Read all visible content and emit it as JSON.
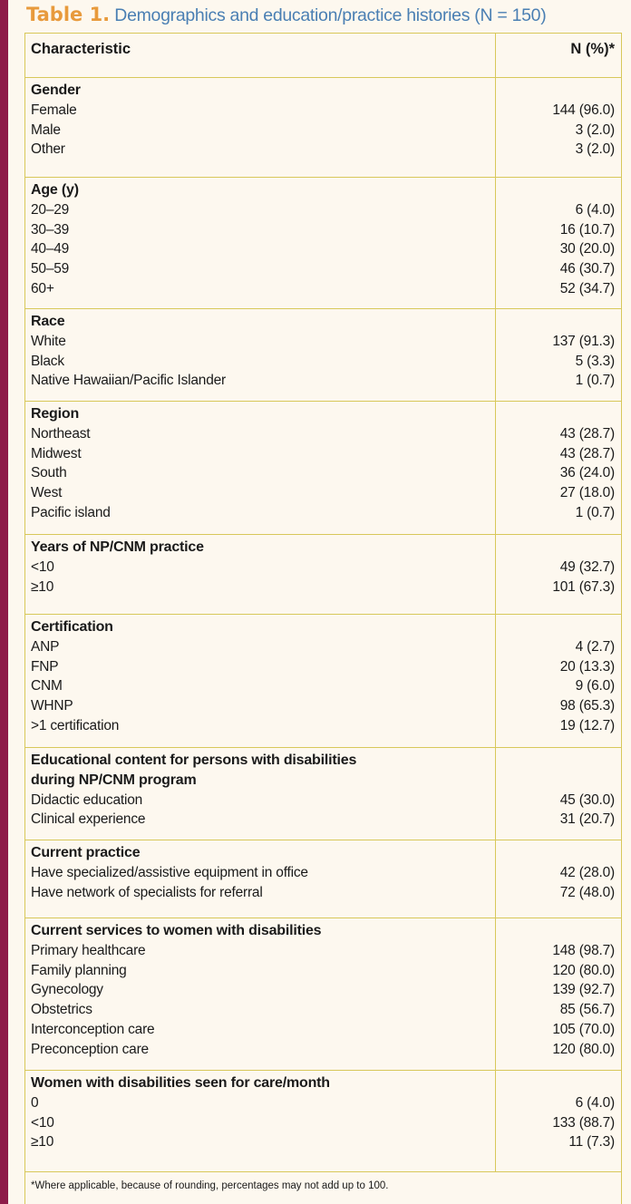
{
  "caption": {
    "label": "Table 1.",
    "text": " Demographics and education/practice histories (N = 150)"
  },
  "header": {
    "characteristic": "Characteristic",
    "value": "N (%)*"
  },
  "sections": [
    {
      "title_lines": [
        "Gender"
      ],
      "rows": [
        {
          "label": "Female",
          "value": "144 (96.0)"
        },
        {
          "label": "Male",
          "value": "3 (2.0)"
        },
        {
          "label": "Other",
          "value": "3 (2.0)"
        }
      ]
    },
    {
      "title_lines": [
        "Age (y)"
      ],
      "rows": [
        {
          "label": "20–29",
          "value": "6 (4.0)"
        },
        {
          "label": "30–39",
          "value": "16 (10.7)"
        },
        {
          "label": "40–49",
          "value": "30 (20.0)"
        },
        {
          "label": "50–59",
          "value": "46 (30.7)"
        },
        {
          "label": "60+",
          "value": "52 (34.7)"
        }
      ]
    },
    {
      "title_lines": [
        "Race"
      ],
      "rows": [
        {
          "label": "White",
          "value": "137 (91.3)"
        },
        {
          "label": "Black",
          "value": "5 (3.3)"
        },
        {
          "label": "Native Hawaiian/Pacific Islander",
          "value": "1 (0.7)"
        }
      ]
    },
    {
      "title_lines": [
        "Region"
      ],
      "rows": [
        {
          "label": "Northeast",
          "value": "43 (28.7)"
        },
        {
          "label": "Midwest",
          "value": "43 (28.7)"
        },
        {
          "label": "South",
          "value": "36 (24.0)"
        },
        {
          "label": "West",
          "value": "27 (18.0)"
        },
        {
          "label": "Pacific island",
          "value": "1 (0.7)"
        }
      ]
    },
    {
      "title_lines": [
        "Years of NP/CNM practice"
      ],
      "rows": [
        {
          "label": "<10",
          "value": "49 (32.7)"
        },
        {
          "label": "≥10",
          "value": "101 (67.3)"
        }
      ]
    },
    {
      "title_lines": [
        "Certification"
      ],
      "rows": [
        {
          "label": "ANP",
          "value": "4 (2.7)"
        },
        {
          "label": "FNP",
          "value": "20 (13.3)"
        },
        {
          "label": "CNM",
          "value": "9 (6.0)"
        },
        {
          "label": "WHNP",
          "value": "98 (65.3)"
        },
        {
          "label": ">1 certification",
          "value": "19 (12.7)"
        }
      ]
    },
    {
      "title_lines": [
        "Educational content for persons with disabilities",
        "during NP/CNM program"
      ],
      "rows": [
        {
          "label": "Didactic education",
          "value": "45 (30.0)"
        },
        {
          "label": "Clinical experience",
          "value": "31 (20.7)"
        }
      ]
    },
    {
      "title_lines": [
        "Current practice"
      ],
      "rows": [
        {
          "label": "Have specialized/assistive equipment in office",
          "value": "42 (28.0)"
        },
        {
          "label": "Have network of specialists for referral",
          "value": "72 (48.0)"
        }
      ]
    },
    {
      "title_lines": [
        "Current services to women with disabilities"
      ],
      "rows": [
        {
          "label": "Primary healthcare",
          "value": "148 (98.7)"
        },
        {
          "label": "Family planning",
          "value": "120 (80.0)"
        },
        {
          "label": "Gynecology",
          "value": "139 (92.7)"
        },
        {
          "label": "Obstetrics",
          "value": "85 (56.7)"
        },
        {
          "label": "Interconception care",
          "value": "105 (70.0)"
        },
        {
          "label": "Preconception care",
          "value": "120 (80.0)"
        }
      ]
    },
    {
      "title_lines": [
        "Women with disabilities seen for care/month"
      ],
      "rows": [
        {
          "label": "0",
          "value": "6 (4.0)"
        },
        {
          "label": "<10",
          "value": "133 (88.7)"
        },
        {
          "label": "≥10",
          "value": "11 (7.3)"
        }
      ]
    }
  ],
  "footnote": "*Where applicable, because of rounding, percentages may not add up to 100.",
  "colors": {
    "spine": "#8e1c4a",
    "background": "#fdf8ef",
    "rule": "#d8c85a",
    "caption_label": "#e89a3c",
    "caption_text": "#4a7fb3"
  }
}
